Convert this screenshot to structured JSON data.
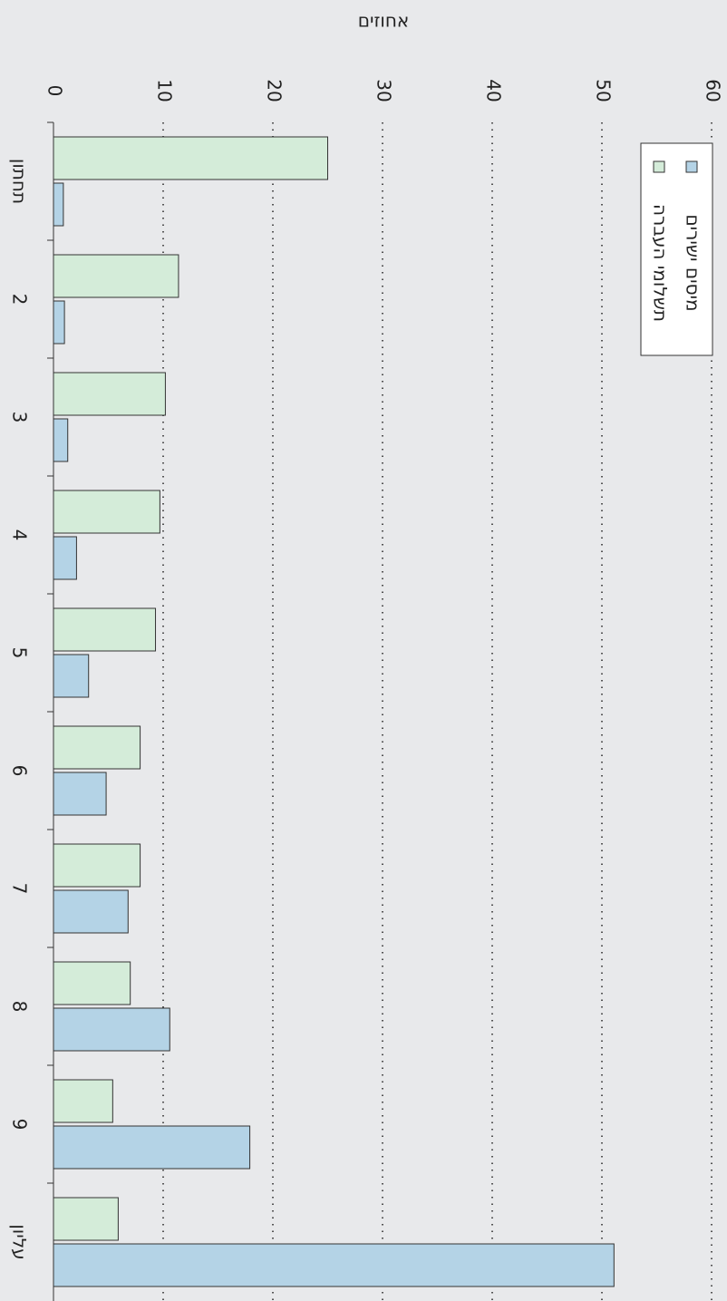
{
  "chart_data": {
    "type": "bar",
    "orientation": "horizontal",
    "axis_label": "אחוזים",
    "categories": [
      "תחתון",
      "2",
      "3",
      "4",
      "5",
      "6",
      "7",
      "8",
      "9",
      "עליון"
    ],
    "series": [
      {
        "name": "תשלומי העברה",
        "color": "#d4ecd9",
        "values": [
          25.0,
          11.4,
          10.2,
          9.7,
          9.3,
          7.9,
          7.9,
          7.0,
          5.4,
          5.9
        ]
      },
      {
        "name": "מיסים ישירים",
        "color": "#b4d3e6",
        "values": [
          0.9,
          1.0,
          1.3,
          2.1,
          3.2,
          4.8,
          6.8,
          10.6,
          17.9,
          51.1
        ]
      }
    ],
    "xlim": [
      0,
      60
    ],
    "xticks": [
      0,
      10,
      20,
      30,
      40,
      50,
      60
    ],
    "grid": true
  }
}
